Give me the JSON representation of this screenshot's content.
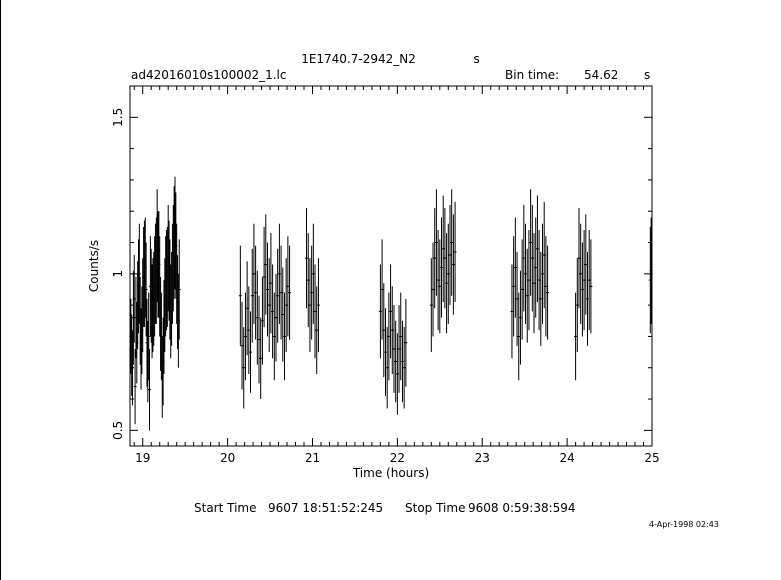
{
  "header": {
    "title_source": "1E1740.7-2942_N2",
    "title_suffix": "s",
    "file_name": "ad42016010s100002_1.lc",
    "bin_time_label": "Bin time:",
    "bin_time_value": "54.62",
    "bin_time_unit": "s"
  },
  "footer": {
    "start_label": "Start Time",
    "start_value": "9607  18:51:52:245",
    "stop_label": "Stop Time",
    "stop_value": "9608   0:59:38:594",
    "date_stamp": "4-Apr-1998 02:43"
  },
  "chart_data": {
    "type": "scatter",
    "error_bars": true,
    "title": "1E1740.7-2942_N2",
    "xlabel": "Time (hours)",
    "ylabel": "Counts/s",
    "xlim": [
      18.85,
      25.0
    ],
    "ylim": [
      0.45,
      1.6
    ],
    "x_ticks": [
      19,
      20,
      21,
      22,
      23,
      24,
      25
    ],
    "x_tick_labels": [
      "19",
      "20",
      "21",
      "22",
      "23",
      "24",
      "25"
    ],
    "y_ticks": [
      0.5,
      1.0,
      1.5
    ],
    "y_tick_labels": [
      "0.5",
      "1",
      "1.5"
    ],
    "segments": [
      {
        "name": "seg1",
        "x": [
          18.86,
          18.87,
          18.88,
          18.89,
          18.9,
          18.91,
          18.92,
          18.93,
          18.94,
          18.95,
          18.96,
          18.97,
          18.98,
          18.99,
          19.0,
          19.01,
          19.02,
          19.03,
          19.04,
          19.05,
          19.06,
          19.07,
          19.08,
          19.09,
          19.1,
          19.11,
          19.12,
          19.13,
          19.14,
          19.15,
          19.16,
          19.17,
          19.18,
          19.19,
          19.2,
          19.21,
          19.22,
          19.23,
          19.24,
          19.25,
          19.26,
          19.27,
          19.28,
          19.29,
          19.3,
          19.31,
          19.32,
          19.33,
          19.34,
          19.35,
          19.36,
          19.37,
          19.38,
          19.39,
          19.4,
          19.41,
          19.42,
          19.43
        ],
        "y": [
          0.8,
          0.74,
          0.7,
          0.86,
          0.92,
          0.64,
          0.86,
          0.78,
          0.9,
          0.96,
          1.0,
          0.85,
          0.76,
          0.82,
          0.9,
          0.99,
          1.0,
          1.02,
          0.95,
          0.78,
          0.72,
          0.8,
          0.63,
          0.96,
          0.93,
          0.88,
          0.9,
          0.92,
          0.96,
          1.0,
          1.01,
          1.09,
          1.03,
          1.03,
          0.96,
          0.84,
          0.8,
          0.67,
          0.72,
          0.83,
          0.9,
          0.96,
          0.98,
          0.99,
          1.05,
          1.01,
          0.95,
          0.88,
          0.92,
          1.0,
          1.05,
          1.1,
          1.13,
          1.09,
          1.0,
          0.91,
          0.85,
          0.95
        ],
        "err": [
          0.12,
          0.13,
          0.12,
          0.15,
          0.14,
          0.12,
          0.13,
          0.13,
          0.14,
          0.15,
          0.16,
          0.14,
          0.13,
          0.14,
          0.15,
          0.16,
          0.17,
          0.16,
          0.15,
          0.14,
          0.13,
          0.14,
          0.13,
          0.16,
          0.15,
          0.15,
          0.15,
          0.15,
          0.16,
          0.16,
          0.17,
          0.18,
          0.17,
          0.17,
          0.16,
          0.15,
          0.14,
          0.13,
          0.14,
          0.15,
          0.15,
          0.16,
          0.16,
          0.16,
          0.17,
          0.16,
          0.16,
          0.15,
          0.15,
          0.16,
          0.17,
          0.18,
          0.18,
          0.17,
          0.16,
          0.15,
          0.15,
          0.16
        ]
      },
      {
        "name": "seg2",
        "x": [
          20.15,
          20.17,
          20.19,
          20.21,
          20.23,
          20.25,
          20.27,
          20.29,
          20.31,
          20.33,
          20.35,
          20.37,
          20.39,
          20.41,
          20.43,
          20.45,
          20.47,
          20.49,
          20.51,
          20.53,
          20.55,
          20.57,
          20.59,
          20.61,
          20.63,
          20.65,
          20.67,
          20.69,
          20.71,
          20.73
        ],
        "y": [
          0.93,
          0.77,
          0.7,
          0.8,
          0.89,
          0.82,
          0.75,
          0.93,
          1.0,
          0.94,
          0.86,
          0.79,
          0.73,
          0.85,
          0.99,
          1.03,
          0.95,
          0.9,
          0.97,
          0.88,
          0.8,
          0.86,
          0.93,
          1.0,
          0.94,
          0.87,
          0.8,
          0.9,
          0.96,
          0.94
        ],
        "err": [
          0.16,
          0.14,
          0.13,
          0.14,
          0.15,
          0.14,
          0.13,
          0.15,
          0.16,
          0.15,
          0.15,
          0.14,
          0.13,
          0.14,
          0.16,
          0.16,
          0.15,
          0.15,
          0.16,
          0.15,
          0.14,
          0.14,
          0.15,
          0.16,
          0.15,
          0.15,
          0.14,
          0.15,
          0.16,
          0.15
        ]
      },
      {
        "name": "seg3",
        "x": [
          20.93,
          20.95,
          20.97,
          20.99,
          21.01,
          21.03,
          21.05,
          21.07
        ],
        "y": [
          1.05,
          0.98,
          0.9,
          0.94,
          1.0,
          0.88,
          0.82,
          0.9
        ],
        "err": [
          0.16,
          0.15,
          0.15,
          0.15,
          0.16,
          0.15,
          0.14,
          0.15
        ]
      },
      {
        "name": "seg4",
        "x": [
          21.8,
          21.82,
          21.84,
          21.86,
          21.88,
          21.9,
          21.92,
          21.94,
          21.96,
          21.98,
          22.0,
          22.02,
          22.04,
          22.06,
          22.08,
          22.1
        ],
        "y": [
          0.88,
          0.95,
          0.82,
          0.75,
          0.7,
          0.8,
          0.88,
          0.82,
          0.76,
          0.72,
          0.68,
          0.76,
          0.8,
          0.72,
          0.7,
          0.78
        ],
        "err": [
          0.15,
          0.16,
          0.15,
          0.14,
          0.13,
          0.14,
          0.15,
          0.14,
          0.14,
          0.13,
          0.13,
          0.14,
          0.14,
          0.13,
          0.13,
          0.14
        ]
      },
      {
        "name": "seg5",
        "x": [
          22.4,
          22.42,
          22.44,
          22.46,
          22.48,
          22.5,
          22.52,
          22.54,
          22.56,
          22.58,
          22.6,
          22.62,
          22.64,
          22.66,
          22.68
        ],
        "y": [
          0.9,
          0.95,
          1.05,
          1.1,
          0.98,
          0.96,
          1.02,
          1.08,
          1.05,
          0.97,
          1.0,
          1.06,
          1.1,
          1.03,
          1.07
        ],
        "err": [
          0.15,
          0.15,
          0.16,
          0.17,
          0.16,
          0.15,
          0.16,
          0.17,
          0.16,
          0.16,
          0.16,
          0.16,
          0.17,
          0.16,
          0.16
        ]
      },
      {
        "name": "seg6",
        "x": [
          23.35,
          23.37,
          23.39,
          23.41,
          23.43,
          23.45,
          23.47,
          23.49,
          23.51,
          23.53,
          23.55,
          23.57,
          23.59,
          23.61,
          23.63,
          23.65,
          23.67,
          23.69,
          23.71,
          23.73,
          23.75,
          23.77
        ],
        "y": [
          0.88,
          0.96,
          1.02,
          0.92,
          0.8,
          0.86,
          0.95,
          1.05,
          1.0,
          0.93,
          0.98,
          1.1,
          1.05,
          0.97,
          1.02,
          1.08,
          0.98,
          0.92,
          1.0,
          1.06,
          0.96,
          0.94
        ],
        "err": [
          0.15,
          0.16,
          0.16,
          0.15,
          0.14,
          0.15,
          0.16,
          0.17,
          0.16,
          0.15,
          0.16,
          0.17,
          0.17,
          0.16,
          0.16,
          0.17,
          0.16,
          0.15,
          0.16,
          0.17,
          0.16,
          0.15
        ]
      },
      {
        "name": "seg7",
        "x": [
          24.1,
          24.12,
          24.14,
          24.16,
          24.18,
          24.2,
          24.22,
          24.24,
          24.26,
          24.28
        ],
        "y": [
          0.8,
          0.9,
          1.05,
          1.0,
          0.95,
          0.98,
          1.03,
          0.92,
          0.98,
          0.96
        ],
        "err": [
          0.14,
          0.15,
          0.16,
          0.16,
          0.15,
          0.16,
          0.16,
          0.15,
          0.16,
          0.15
        ]
      },
      {
        "name": "seg8",
        "x": [
          24.98,
          24.99
        ],
        "y": [
          0.98,
          1.01
        ],
        "err": [
          0.17,
          0.17
        ]
      }
    ]
  }
}
